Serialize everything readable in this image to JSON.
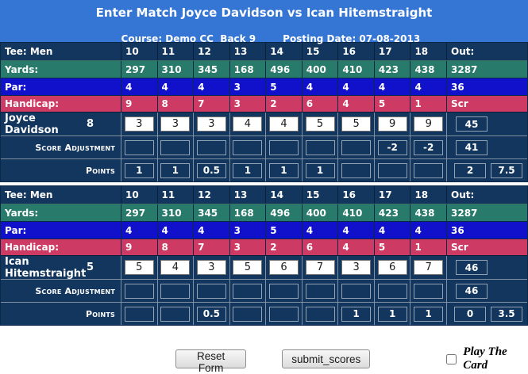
{
  "header": {
    "title": "Enter Match Joyce Davidson vs Ican Hitemstraight",
    "course_line": "Course: Demo CC  Back 9",
    "posting_date": "Posting Date: 07-08-2013"
  },
  "course": {
    "tee_label": "Tee: Men",
    "out_label": "Out:",
    "holes": [
      "10",
      "11",
      "12",
      "13",
      "14",
      "15",
      "16",
      "17",
      "18"
    ],
    "yards_label": "Yards:",
    "yards": [
      "297",
      "310",
      "345",
      "168",
      "496",
      "400",
      "410",
      "423",
      "438"
    ],
    "yards_out": "3287",
    "par_label": "Par:",
    "par": [
      "4",
      "4",
      "4",
      "3",
      "5",
      "4",
      "4",
      "4",
      "4"
    ],
    "par_out": "36",
    "handicap_label": "Handicap:",
    "handicap": [
      "9",
      "8",
      "7",
      "3",
      "2",
      "6",
      "4",
      "5",
      "1"
    ],
    "handicap_out": "Scr"
  },
  "labels": {
    "score_adjustment": "Score Adjustment",
    "points": "Points"
  },
  "players": [
    {
      "name": "Joyce Davidson",
      "handicap": "8",
      "scores": [
        "3",
        "3",
        "3",
        "4",
        "4",
        "5",
        "5",
        "9",
        "9"
      ],
      "score_out": "45",
      "adjustments": [
        "",
        "",
        "",
        "",
        "",
        "",
        "",
        "-2",
        "-2"
      ],
      "adjustment_out": "41",
      "points": [
        "1",
        "1",
        "0.5",
        "1",
        "1",
        "1",
        "",
        "",
        ""
      ],
      "points_out": "2",
      "points_total": "7.5"
    },
    {
      "name": "Ican Hitemstraight",
      "handicap": "5",
      "scores": [
        "5",
        "4",
        "3",
        "5",
        "6",
        "7",
        "3",
        "6",
        "7"
      ],
      "score_out": "46",
      "adjustments": [
        "",
        "",
        "",
        "",
        "",
        "",
        "",
        "",
        ""
      ],
      "adjustment_out": "46",
      "points": [
        "",
        "",
        "0.5",
        "",
        "",
        "",
        "1",
        "1",
        "1"
      ],
      "points_out": "0",
      "points_total": "3.5"
    }
  ],
  "footer": {
    "reset_label": "Reset Form",
    "submit_label": "submit_scores",
    "checkbox_label": "Play The Card",
    "checkbox_checked": false
  },
  "colors": {
    "header_blue": "#3575D4",
    "table_navy": "#12365E",
    "yards_teal": "#287A6B",
    "par_blue": "#1111CC",
    "handicap_red": "#CD3A64",
    "grid_grey": "#7E90A2",
    "text_white": "#FFFFFF"
  }
}
